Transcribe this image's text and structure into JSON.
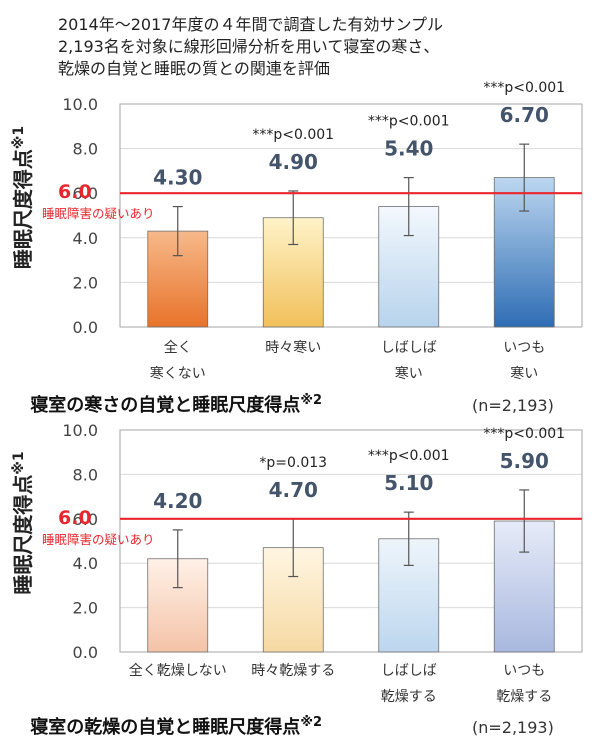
{
  "intro": [
    "2014年～2017年度の４年間で調査した有効サンプル",
    "2,193名を対象に線形回帰分析を用いて寝室の寒さ、",
    "乾燥の自覚と睡眠の質との関連を評価"
  ],
  "chart_data": [
    {
      "type": "bar",
      "title": "寝室の寒さの自覚と睡眠尺度得点",
      "title_note": "※2",
      "sample_note": "(n=2,193)",
      "ylabel": "睡眠尺度得点",
      "ylabel_note": "※1",
      "ylim": [
        0,
        10
      ],
      "yticks": [
        "0.0",
        "2.0",
        "4.0",
        "6.0",
        "8.0",
        "10.0"
      ],
      "categories": [
        [
          "全く",
          "寒くない"
        ],
        [
          "時々寒い"
        ],
        [
          "しばしば",
          "寒い"
        ],
        [
          "いつも",
          "寒い"
        ]
      ],
      "values": [
        4.3,
        4.9,
        5.4,
        6.7
      ],
      "value_labels": [
        "4.30",
        "4.90",
        "5.40",
        "6.70"
      ],
      "error": [
        1.1,
        1.2,
        1.3,
        1.5
      ],
      "significance": [
        "",
        "***p<0.001",
        "***p<0.001",
        "***p<0.001"
      ],
      "threshold": {
        "value": 6.0,
        "label": "6.0",
        "note": "睡眠障害の疑いあり",
        "color": "#e8262d"
      },
      "bar_colors": [
        [
          "#f7b98a",
          "#e8732a"
        ],
        [
          "#fff3c8",
          "#f1c05a"
        ],
        [
          "#f3f8fd",
          "#b7d3ec"
        ],
        [
          "#bcd6ef",
          "#2e6db4"
        ]
      ],
      "grid": true
    },
    {
      "type": "bar",
      "title": "寝室の乾燥の自覚と睡眠尺度得点",
      "title_note": "※2",
      "sample_note": "(n=2,193)",
      "ylabel": "睡眠尺度得点",
      "ylabel_note": "※1",
      "ylim": [
        0,
        10
      ],
      "yticks": [
        "0.0",
        "2.0",
        "4.0",
        "6.0",
        "8.0",
        "10.0"
      ],
      "categories": [
        [
          "全く乾燥しない"
        ],
        [
          "時々乾燥する"
        ],
        [
          "しばしば",
          "乾燥する"
        ],
        [
          "いつも",
          "乾燥する"
        ]
      ],
      "values": [
        4.2,
        4.7,
        5.1,
        5.9
      ],
      "value_labels": [
        "4.20",
        "4.70",
        "5.10",
        "5.90"
      ],
      "error": [
        1.3,
        1.3,
        1.2,
        1.4
      ],
      "significance": [
        "",
        "*p=0.013",
        "***p<0.001",
        "***p<0.001"
      ],
      "threshold": {
        "value": 6.0,
        "label": "6.0",
        "note": "睡眠障害の疑いあり",
        "color": "#e8262d"
      },
      "bar_colors": [
        [
          "#fff1e8",
          "#f4c3a7"
        ],
        [
          "#fff6e2",
          "#f6d9a3"
        ],
        [
          "#eef5fb",
          "#bcd6ee"
        ],
        [
          "#e6ebf8",
          "#a9b8df"
        ]
      ],
      "grid": true
    }
  ]
}
